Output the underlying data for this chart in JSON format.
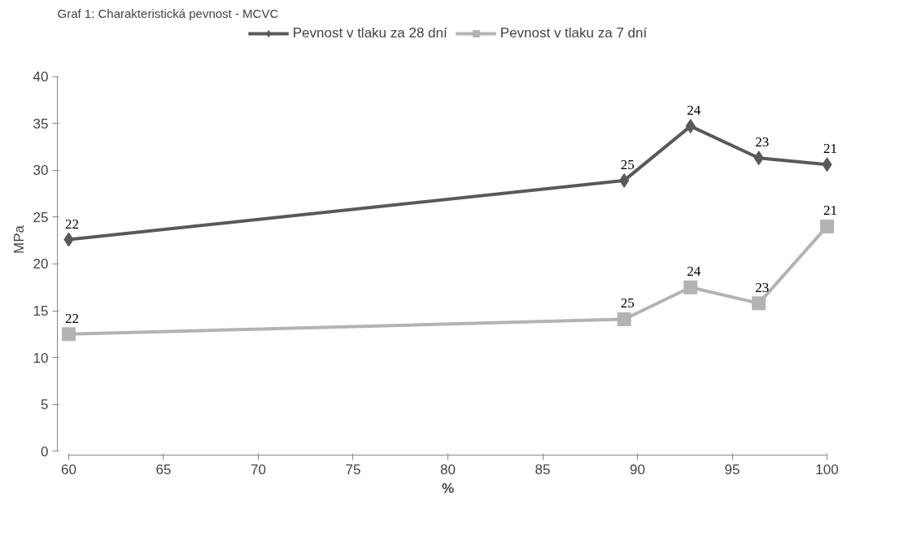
{
  "chart_data": {
    "type": "line",
    "title": "Graf 1: Charakteristická pevnost - MCVC",
    "xlabel": "%",
    "ylabel": "MPa",
    "x": [
      60,
      89.3,
      92.8,
      96.4,
      100
    ],
    "series": [
      {
        "name": "Pevnost v tlaku za 28 dní",
        "color": "#595959",
        "marker": "diamond",
        "values": [
          22.6,
          28.9,
          34.7,
          31.3,
          30.6
        ]
      },
      {
        "name": "Pevnost v tlaku za 7 dní",
        "color": "#b3b3b3",
        "marker": "square",
        "values": [
          12.5,
          14.1,
          17.5,
          15.8,
          24.0
        ]
      }
    ],
    "annotations": [
      {
        "text": "22",
        "x": 60,
        "y": 22.6
      },
      {
        "text": "25",
        "x": 89.3,
        "y": 28.9
      },
      {
        "text": "24",
        "x": 92.8,
        "y": 34.7
      },
      {
        "text": "23",
        "x": 96.4,
        "y": 31.3
      },
      {
        "text": "21",
        "x": 100,
        "y": 30.6
      },
      {
        "text": "22",
        "x": 60,
        "y": 12.5
      },
      {
        "text": "25",
        "x": 89.3,
        "y": 14.1
      },
      {
        "text": "24",
        "x": 92.8,
        "y": 17.5
      },
      {
        "text": "23",
        "x": 96.4,
        "y": 15.8
      },
      {
        "text": "21",
        "x": 100,
        "y": 24.0
      }
    ],
    "xlim": [
      60,
      100
    ],
    "xticks": [
      60,
      65,
      70,
      75,
      80,
      85,
      90,
      95,
      100
    ],
    "ylim": [
      0,
      40
    ],
    "yticks": [
      0,
      5,
      10,
      15,
      20,
      25,
      30,
      35,
      40
    ],
    "grid": false,
    "legend": "top",
    "line_style": "solid"
  }
}
